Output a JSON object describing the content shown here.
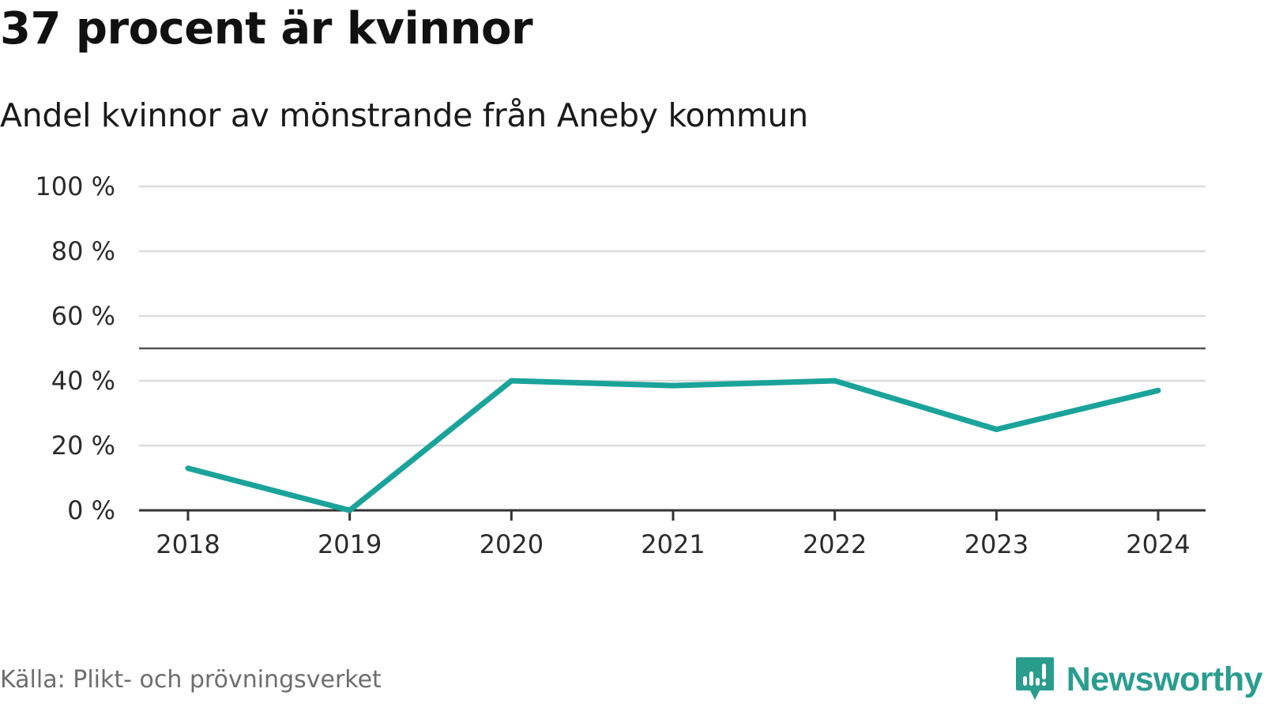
{
  "title": "37 procent är kvinnor",
  "subtitle": "Andel kvinnor av mönstrande från Aneby kommun",
  "source": "Källa: Plikt- och prövningsverket",
  "brand": {
    "name": "Newsworthy",
    "icon": "newsworthy-logo-icon",
    "color": "#2a9d8f"
  },
  "colors": {
    "line": "#1aa39a",
    "grid": "#dddddd",
    "axis": "#333333",
    "reference_line": "#555555"
  },
  "chart_data": {
    "type": "line",
    "title": "37 procent är kvinnor",
    "subtitle": "Andel kvinnor av mönstrande från Aneby kommun",
    "x": [
      "2018",
      "2019",
      "2020",
      "2021",
      "2022",
      "2023",
      "2024"
    ],
    "series": [
      {
        "values": [
          13,
          0,
          40,
          38.5,
          40,
          25,
          37
        ],
        "color": "#1aa39a"
      }
    ],
    "ylim": [
      0,
      100
    ],
    "yticks": [
      0,
      20,
      40,
      60,
      80,
      100
    ],
    "ytick_labels": [
      "0 %",
      "20 %",
      "40 %",
      "60 %",
      "80 %",
      "100 %"
    ],
    "reference_line": 50,
    "grid": true,
    "legend": "none"
  }
}
